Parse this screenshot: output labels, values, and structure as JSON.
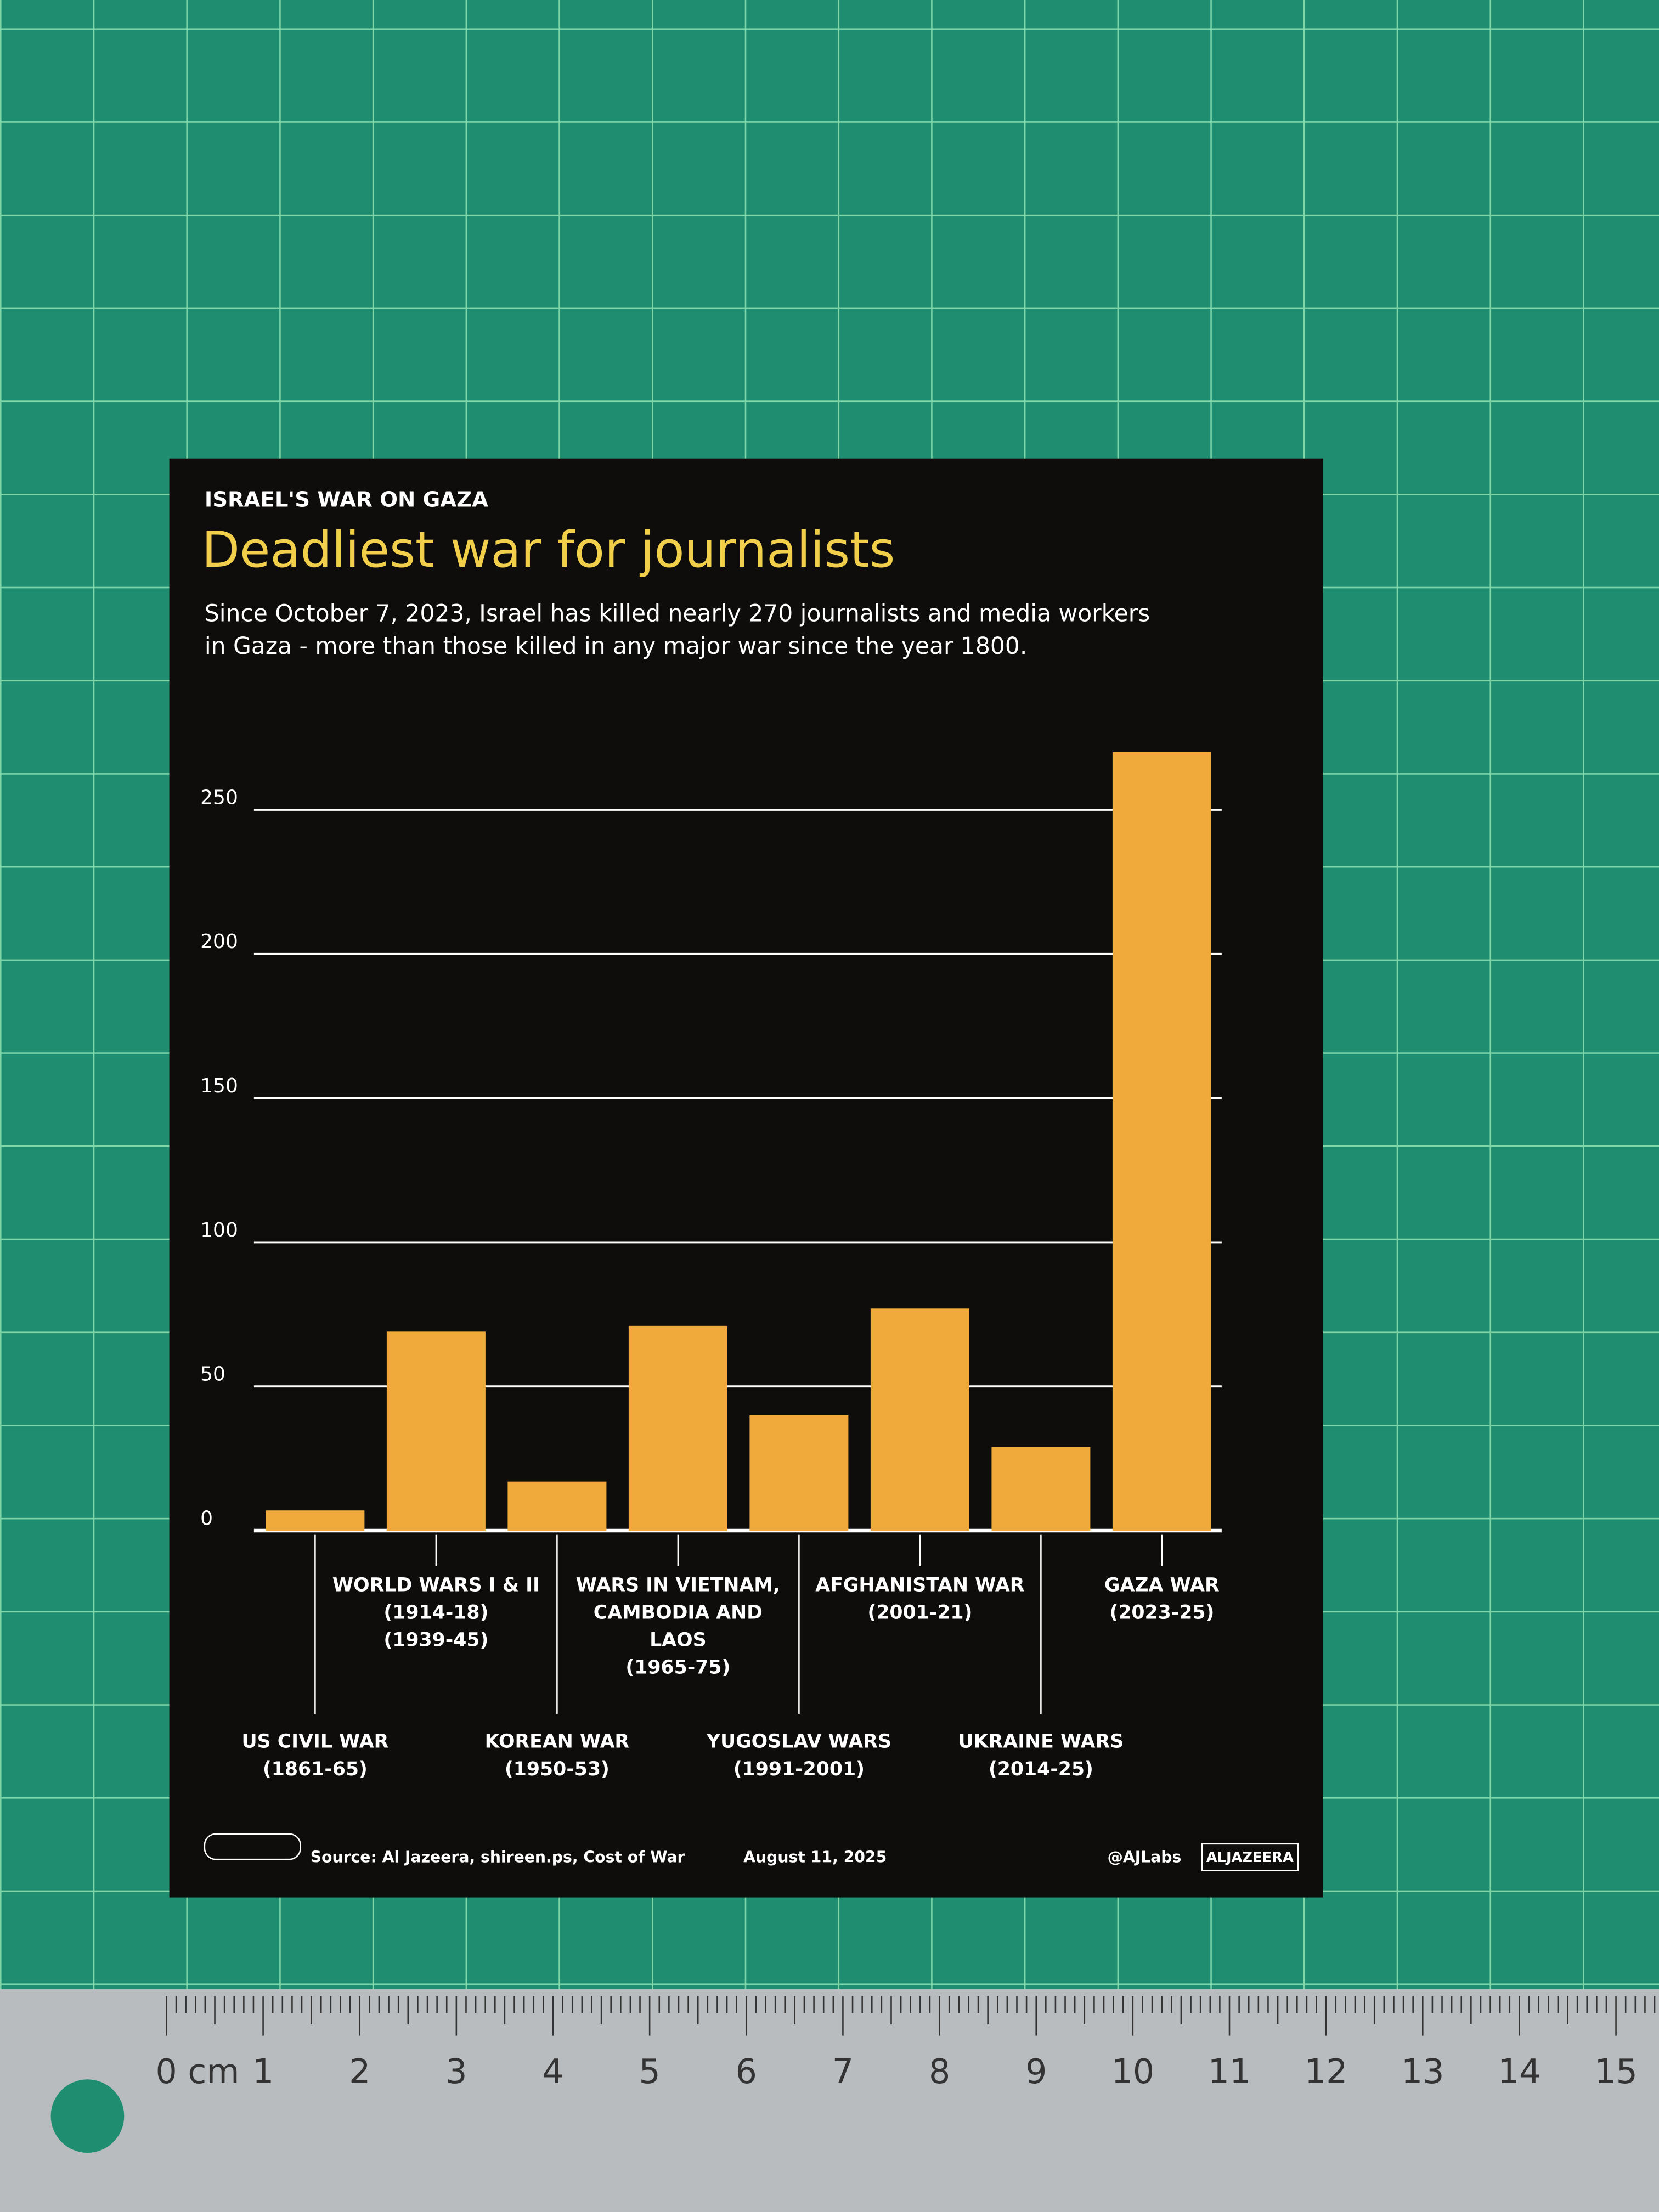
{
  "chart_data": {
    "type": "bar",
    "kicker": "ISRAEL'S WAR ON GAZA",
    "title": "Deadliest war for journalists",
    "subtitle": [
      "Since October 7, 2023, Israel has killed nearly 270 journalists and media workers",
      "in Gaza - more than those killed in any major war since the year 1800."
    ],
    "categories": [
      [
        "US CIVIL WAR",
        "(1861-65)"
      ],
      [
        "WORLD WARS I & II",
        "(1914-18)",
        "(1939-45)"
      ],
      [
        "KOREAN WAR",
        "(1950-53)"
      ],
      [
        "WARS IN VIETNAM,",
        "CAMBODIA AND",
        "LAOS",
        "(1965-75)"
      ],
      [
        "YUGOSLAV WARS",
        "(1991-2001)"
      ],
      [
        "AFGHANISTAN WAR",
        "(2001-21)"
      ],
      [
        "UKRAINE WARS",
        "(2014-25)"
      ],
      [
        "GAZA WAR",
        "(2023-25)"
      ]
    ],
    "values": [
      7,
      69,
      17,
      71,
      40,
      77,
      29,
      270
    ],
    "color": "#f0a93b",
    "ylim": [
      0,
      270
    ],
    "yticks": [
      0,
      50,
      100,
      150,
      200,
      250
    ],
    "grid": true,
    "source": "Source: Al Jazeera, shireen.ps, Cost of War",
    "date": "August 11, 2025",
    "handle": "@AJLabs",
    "brand": "ALJAZEERA"
  },
  "ruler": {
    "labels": [
      "0 cm",
      "1",
      "2",
      "3",
      "4",
      "5",
      "6",
      "7",
      "8",
      "9",
      "10",
      "11",
      "12",
      "13",
      "14",
      "15"
    ]
  }
}
